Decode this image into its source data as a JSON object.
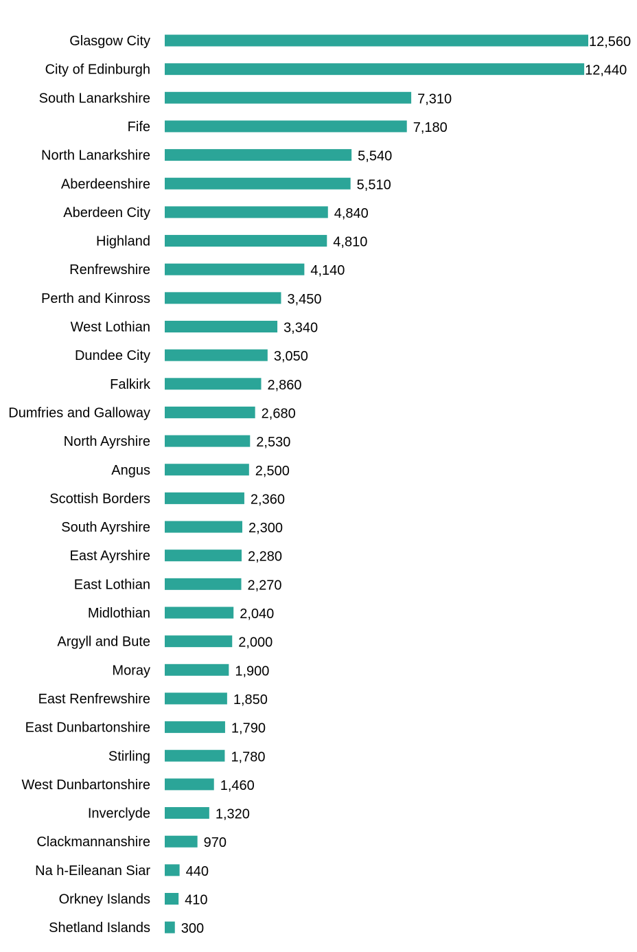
{
  "chart_data": {
    "type": "bar",
    "orientation": "horizontal",
    "title": "",
    "xlabel": "",
    "ylabel": "",
    "grid": false,
    "bar_color": "#2ba598",
    "categories": [
      "Glasgow City",
      "City of Edinburgh",
      "South Lanarkshire",
      "Fife",
      "North Lanarkshire",
      "Aberdeenshire",
      "Aberdeen City",
      "Highland",
      "Renfrewshire",
      "Perth and Kinross",
      "West Lothian",
      "Dundee City",
      "Falkirk",
      "Dumfries and Galloway",
      "North Ayrshire",
      "Angus",
      "Scottish Borders",
      "South Ayrshire",
      "East Ayrshire",
      "East Lothian",
      "Midlothian",
      "Argyll and Bute",
      "Moray",
      "East Renfrewshire",
      "East Dunbartonshire",
      "Stirling",
      "West Dunbartonshire",
      "Inverclyde",
      "Clackmannanshire",
      "Na h-Eileanan Siar",
      "Orkney Islands",
      "Shetland Islands"
    ],
    "values": [
      12560,
      12440,
      7310,
      7180,
      5540,
      5510,
      4840,
      4810,
      4140,
      3450,
      3340,
      3050,
      2860,
      2680,
      2530,
      2500,
      2360,
      2300,
      2280,
      2270,
      2040,
      2000,
      1900,
      1850,
      1790,
      1780,
      1460,
      1320,
      970,
      440,
      410,
      300
    ],
    "value_labels": [
      "12,560",
      "12,440",
      "7,310",
      "7,180",
      "5,540",
      "5,510",
      "4,840",
      "4,810",
      "4,140",
      "3,450",
      "3,340",
      "3,050",
      "2,860",
      "2,680",
      "2,530",
      "2,500",
      "2,360",
      "2,300",
      "2,280",
      "2,270",
      "2,040",
      "2,000",
      "1,900",
      "1,850",
      "1,790",
      "1,780",
      "1,460",
      "1,320",
      "970",
      "440",
      "410",
      "300"
    ],
    "xlim": [
      0,
      12560
    ]
  }
}
